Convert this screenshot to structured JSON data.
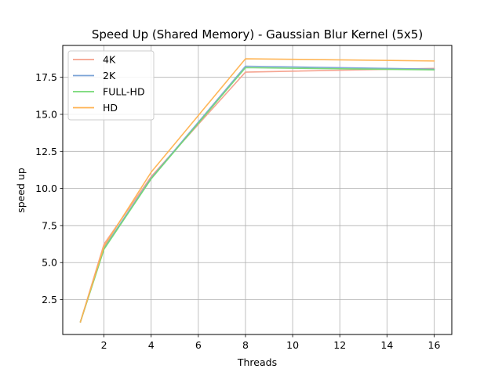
{
  "chart_data": {
    "type": "line",
    "title": "Speed Up (Shared Memory) - Gaussian Blur Kernel (5x5)",
    "xlabel": "Threads",
    "ylabel": "speed up",
    "x": [
      1,
      2,
      4,
      8,
      16
    ],
    "xlim": [
      0.25,
      16.75
    ],
    "ylim": [
      0.15,
      19.65
    ],
    "xticks": [
      2,
      4,
      6,
      8,
      10,
      12,
      14,
      16
    ],
    "xtick_labels": [
      "2",
      "4",
      "6",
      "8",
      "10",
      "12",
      "14",
      "16"
    ],
    "yticks": [
      2.5,
      5.0,
      7.5,
      10.0,
      12.5,
      15.0,
      17.5
    ],
    "ytick_labels": [
      "2.5",
      "5.0",
      "7.5",
      "10.0",
      "12.5",
      "15.0",
      "17.5"
    ],
    "grid": true,
    "legend_position": "upper-left",
    "series": [
      {
        "name": "4K",
        "color": "#f4a08c",
        "values": [
          1.0,
          6.25,
          10.8,
          17.85,
          18.1
        ]
      },
      {
        "name": "2K",
        "color": "#7ba3d6",
        "values": [
          1.0,
          6.0,
          10.7,
          18.25,
          18.05
        ]
      },
      {
        "name": "FULL-HD",
        "color": "#73d873",
        "values": [
          1.0,
          5.9,
          10.65,
          18.15,
          18.0
        ]
      },
      {
        "name": "HD",
        "color": "#ffb24f",
        "values": [
          1.0,
          6.1,
          11.1,
          18.75,
          18.6
        ]
      }
    ]
  }
}
